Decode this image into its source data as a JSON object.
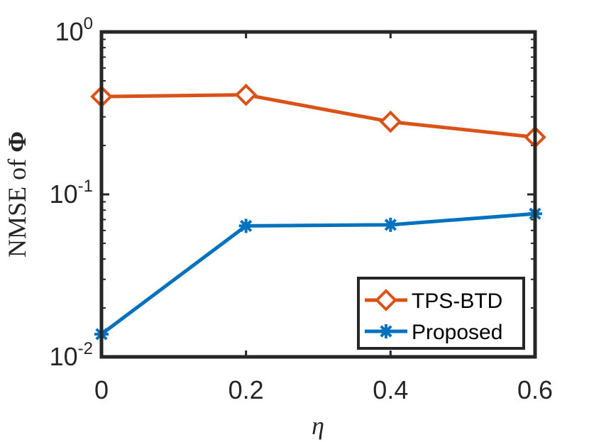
{
  "chart_data": {
    "type": "line",
    "xlabel": "η",
    "ylabel": "NMSE of Φ",
    "ylabel_prefix": "NMSE of ",
    "ylabel_symbol": "Φ",
    "x": [
      0,
      0.2,
      0.4,
      0.6
    ],
    "x_ticks": [
      "0",
      "0.2",
      "0.4",
      "0.6"
    ],
    "xlim": [
      0,
      0.6
    ],
    "y_scale": "log",
    "ylim": [
      0.01,
      1
    ],
    "y_ticks": [
      {
        "base": "10",
        "exp": "-2"
      },
      {
        "base": "10",
        "exp": "-1"
      },
      {
        "base": "10",
        "exp": "0"
      }
    ],
    "grid": false,
    "legend_position": "bottom-right",
    "series": [
      {
        "name": "TPS-BTD",
        "values": [
          0.4,
          0.41,
          0.28,
          0.225
        ],
        "color": "#D95319",
        "marker": "diamond"
      },
      {
        "name": "Proposed",
        "values": [
          0.0138,
          0.064,
          0.065,
          0.076
        ],
        "color": "#0072BD",
        "marker": "asterisk"
      }
    ]
  }
}
